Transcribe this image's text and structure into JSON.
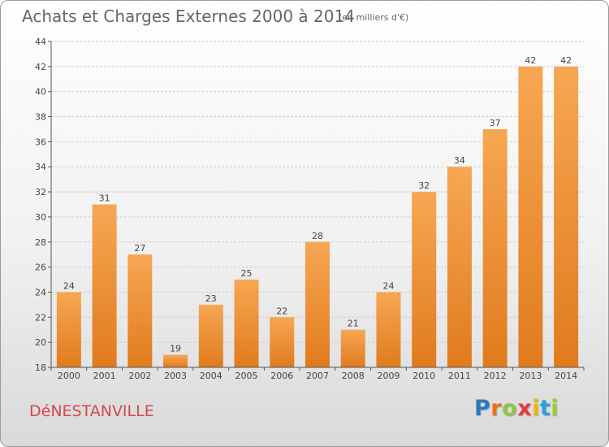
{
  "header": {
    "title": "Achats et Charges Externes 2000 à 2014",
    "subtitle": "(en milliers d'€)"
  },
  "footer": {
    "commune": "DéNESTANVILLE",
    "brand": {
      "letters": [
        "P",
        "r",
        "o",
        "x",
        "i",
        "t",
        "i"
      ],
      "colors": [
        "#2b78c2",
        "#e8731c",
        "#8cc63f",
        "#e33b3b",
        "#f4b400",
        "#2b9fd8",
        "#9acd32"
      ]
    }
  },
  "chart_data": {
    "type": "bar",
    "title": "Achats et Charges Externes 2000 à 2014",
    "subtitle": "(en milliers d'€)",
    "xlabel": "",
    "ylabel": "",
    "categories": [
      "2000",
      "2001",
      "2002",
      "2003",
      "2004",
      "2005",
      "2006",
      "2007",
      "2008",
      "2009",
      "2010",
      "2011",
      "2012",
      "2013",
      "2014"
    ],
    "values": [
      24,
      31,
      27,
      19,
      23,
      25,
      22,
      28,
      21,
      24,
      32,
      34,
      37,
      42,
      42
    ],
    "ylim": [
      18,
      44
    ],
    "yticks": [
      18,
      20,
      22,
      24,
      26,
      28,
      30,
      32,
      34,
      36,
      38,
      40,
      42,
      44
    ],
    "grid": true,
    "legend": "none",
    "colors": {
      "bar_light": "#f7a753",
      "bar_dark": "#e07b1d",
      "grid": "#cccccc",
      "axis": "#555555"
    }
  }
}
